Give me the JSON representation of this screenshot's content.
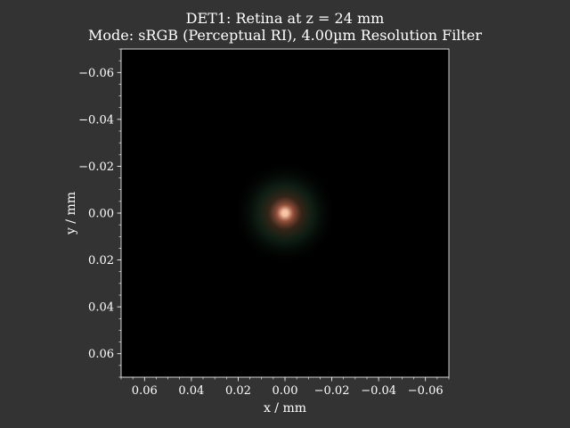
{
  "chart_data": {
    "type": "heatmap",
    "title": "DET1: Retina at z = 24 mm",
    "subtitle": "Mode: sRGB (Perceptual RI), 4.00µm Resolution Filter",
    "xlabel": "x / mm",
    "ylabel": "y / mm",
    "xlim": [
      0.07,
      -0.07
    ],
    "ylim": [
      -0.07,
      0.07
    ],
    "x_ticks": [
      0.06,
      0.04,
      0.02,
      0.0,
      -0.02,
      -0.04,
      -0.06
    ],
    "x_tick_labels": [
      "0.06",
      "0.04",
      "0.02",
      "0.00",
      "−0.02",
      "−0.04",
      "−0.06"
    ],
    "y_ticks": [
      -0.06,
      -0.04,
      -0.02,
      0.0,
      0.02,
      0.04,
      0.06
    ],
    "y_tick_labels": [
      "−0.06",
      "−0.04",
      "−0.02",
      "0.00",
      "0.02",
      "0.04",
      "0.06"
    ],
    "minor_tick_step": 0.005,
    "spot": {
      "center": [
        0.0,
        0.0
      ],
      "core_color": "#ffc9a8",
      "inner_color": "#c46a4e",
      "halo_color": "#2b5a3c"
    },
    "background_color": "#000000",
    "grid": false
  }
}
